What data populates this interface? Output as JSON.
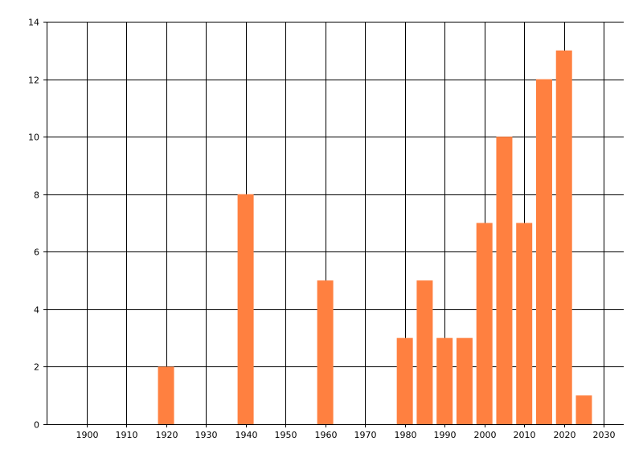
{
  "chart_data": {
    "type": "bar",
    "title": "",
    "xlabel": "",
    "ylabel": "",
    "x": [
      1920,
      1940,
      1960,
      1980,
      1985,
      1990,
      1995,
      2000,
      2005,
      2010,
      2015,
      2020,
      2025
    ],
    "values": [
      2,
      8,
      5,
      3,
      5,
      3,
      3,
      7,
      10,
      7,
      12,
      13,
      1
    ],
    "xlim": [
      1890,
      2035
    ],
    "ylim": [
      0,
      14
    ],
    "x_ticks": [
      1900,
      1910,
      1920,
      1930,
      1940,
      1950,
      1960,
      1970,
      1980,
      1990,
      2000,
      2010,
      2020,
      2030
    ],
    "y_ticks": [
      0,
      2,
      4,
      6,
      8,
      10,
      12,
      14
    ],
    "grid": true,
    "bar_color": "#ff8040",
    "grid_color": "#000000"
  }
}
